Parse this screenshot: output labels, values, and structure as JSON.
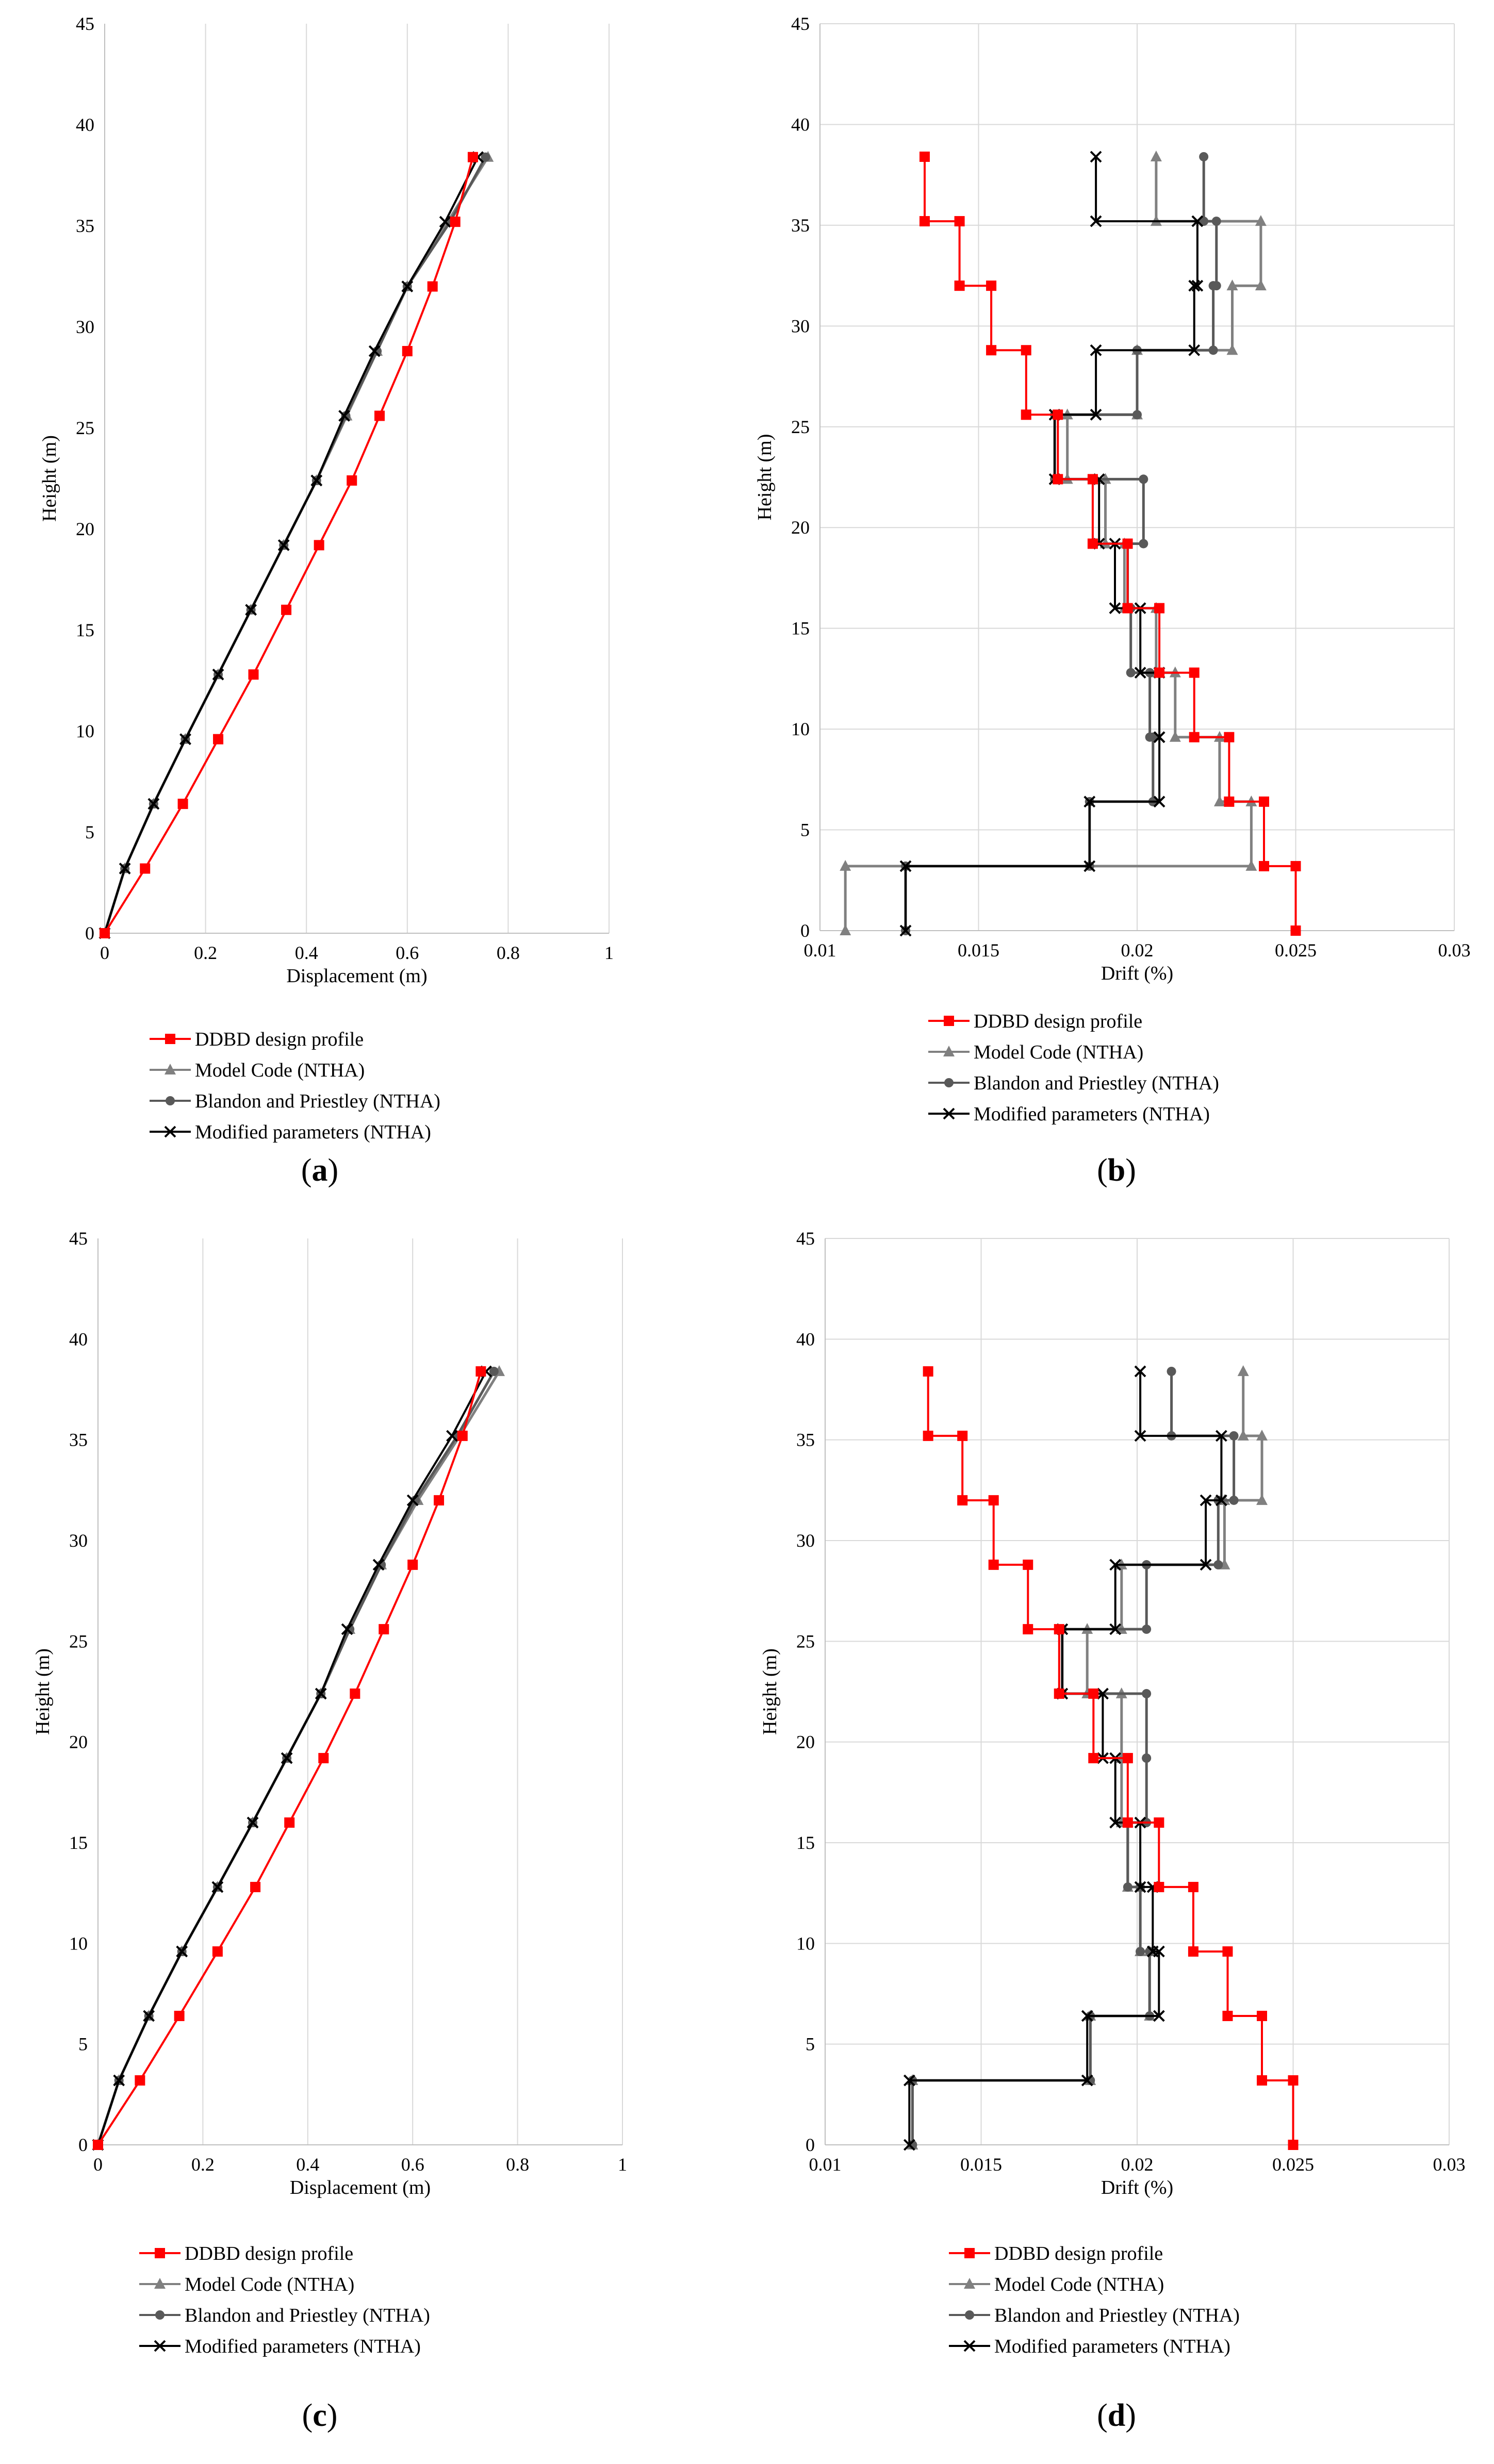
{
  "colors": {
    "ddbd": "#ff0000",
    "model_code": "#808080",
    "blandon": "#595959",
    "modified": "#000000",
    "grid": "#d9d9d9",
    "axis": "#bfbfbf"
  },
  "chart_data": [
    {
      "id": "a",
      "caption_letter": "a",
      "type": "line",
      "xlabel": "Displacement (m)",
      "ylabel": "Height (m)",
      "xlim": [
        0,
        1
      ],
      "ylim": [
        0,
        45
      ],
      "xticks": [
        0,
        0.2,
        0.4,
        0.6,
        0.8,
        1
      ],
      "xtick_labels": [
        "0",
        "0.2",
        "0.4",
        "0.6",
        "0.8",
        "1"
      ],
      "yticks": [
        0,
        5,
        10,
        15,
        20,
        25,
        30,
        35,
        40,
        45
      ],
      "ytick_labels": [
        "0",
        "5",
        "10",
        "15",
        "20",
        "25",
        "30",
        "35",
        "40",
        "45"
      ],
      "grid": "vertical",
      "series": [
        {
          "name": "DDBD design profile",
          "key": "ddbd",
          "marker": "square",
          "step": false,
          "x": [
            0,
            0.08,
            0.155,
            0.225,
            0.295,
            0.36,
            0.425,
            0.49,
            0.545,
            0.6,
            0.65,
            0.695,
            0.73
          ],
          "y": [
            0,
            3.2,
            6.4,
            9.6,
            12.8,
            16,
            19.2,
            22.4,
            25.6,
            28.8,
            32,
            35.2,
            38.4
          ]
        },
        {
          "name": "Model Code (NTHA)",
          "key": "model_code",
          "marker": "triangle",
          "step": false,
          "x": [
            0,
            0.04,
            0.097,
            0.16,
            0.225,
            0.29,
            0.355,
            0.42,
            0.48,
            0.54,
            0.6,
            0.68,
            0.76
          ],
          "y": [
            0,
            3.2,
            6.4,
            9.6,
            12.8,
            16,
            19.2,
            22.4,
            25.6,
            28.8,
            32,
            35.2,
            38.4
          ]
        },
        {
          "name": "Blandon and Priestley (NTHA)",
          "key": "blandon",
          "marker": "circle",
          "step": false,
          "x": [
            0,
            0.04,
            0.097,
            0.16,
            0.225,
            0.29,
            0.355,
            0.42,
            0.478,
            0.54,
            0.6,
            0.685,
            0.755
          ],
          "y": [
            0,
            3.2,
            6.4,
            9.6,
            12.8,
            16,
            19.2,
            22.4,
            25.6,
            28.8,
            32,
            35.2,
            38.4
          ]
        },
        {
          "name": "Modified parameters (NTHA)",
          "key": "modified",
          "marker": "x",
          "step": false,
          "x": [
            0,
            0.04,
            0.097,
            0.16,
            0.225,
            0.29,
            0.355,
            0.42,
            0.475,
            0.535,
            0.6,
            0.675,
            0.74
          ],
          "y": [
            0,
            3.2,
            6.4,
            9.6,
            12.8,
            16,
            19.2,
            22.4,
            25.6,
            28.8,
            32,
            35.2,
            38.4
          ]
        }
      ]
    },
    {
      "id": "b",
      "caption_letter": "b",
      "type": "line",
      "xlabel": "Drift (%)",
      "ylabel": "Height (m)",
      "xlim": [
        0.01,
        0.03
      ],
      "ylim": [
        0,
        45
      ],
      "xticks": [
        0.01,
        0.015,
        0.02,
        0.025,
        0.03
      ],
      "xtick_labels": [
        "0.01",
        "0.015",
        "0.02",
        "0.025",
        "0.03"
      ],
      "yticks": [
        0,
        5,
        10,
        15,
        20,
        25,
        30,
        35,
        40,
        45
      ],
      "ytick_labels": [
        "0",
        "5",
        "10",
        "15",
        "20",
        "25",
        "30",
        "35",
        "40",
        "45"
      ],
      "grid": "both",
      "series": [
        {
          "name": "DDBD design profile",
          "key": "ddbd",
          "marker": "square",
          "step": true,
          "drifts": [
            0.025,
            0.024,
            0.0229,
            0.0218,
            0.0207,
            0.0197,
            0.0186,
            0.0175,
            0.0165,
            0.0154,
            0.0144,
            0.0133
          ]
        },
        {
          "name": "Model Code (NTHA)",
          "key": "model_code",
          "marker": "triangle",
          "step": true,
          "drifts": [
            0.0108,
            0.0236,
            0.0226,
            0.0212,
            0.0206,
            0.0196,
            0.019,
            0.0178,
            0.02,
            0.023,
            0.0239,
            0.0206
          ]
        },
        {
          "name": "Blandon and Priestley (NTHA)",
          "key": "blandon",
          "marker": "circle",
          "step": true,
          "drifts": [
            0.0127,
            0.0185,
            0.0205,
            0.0204,
            0.0198,
            0.0197,
            0.0202,
            0.0174,
            0.02,
            0.0224,
            0.0225,
            0.0221
          ]
        },
        {
          "name": "Modified parameters (NTHA)",
          "key": "modified",
          "marker": "x",
          "step": true,
          "drifts": [
            0.0127,
            0.0185,
            0.0207,
            0.0207,
            0.0201,
            0.0193,
            0.0188,
            0.0174,
            0.0187,
            0.0218,
            0.0219,
            0.0187
          ]
        }
      ]
    },
    {
      "id": "c",
      "caption_letter": "c",
      "type": "line",
      "xlabel": "Displacement (m)",
      "ylabel": "Height (m)",
      "xlim": [
        0,
        1
      ],
      "ylim": [
        0,
        45
      ],
      "xticks": [
        0,
        0.2,
        0.4,
        0.6,
        0.8,
        1
      ],
      "xtick_labels": [
        "0",
        "0.2",
        "0.4",
        "0.6",
        "0.8",
        "1"
      ],
      "yticks": [
        0,
        5,
        10,
        15,
        20,
        25,
        30,
        35,
        40,
        45
      ],
      "ytick_labels": [
        "0",
        "5",
        "10",
        "15",
        "20",
        "25",
        "30",
        "35",
        "40",
        "45"
      ],
      "grid": "vertical",
      "series": [
        {
          "name": "DDBD design profile",
          "key": "ddbd",
          "marker": "square",
          "step": false,
          "x": [
            0,
            0.08,
            0.155,
            0.228,
            0.3,
            0.365,
            0.43,
            0.49,
            0.545,
            0.6,
            0.65,
            0.695,
            0.73
          ],
          "y": [
            0,
            3.2,
            6.4,
            9.6,
            12.8,
            16,
            19.2,
            22.4,
            25.6,
            28.8,
            32,
            35.2,
            38.4
          ]
        },
        {
          "name": "Model Code (NTHA)",
          "key": "model_code",
          "marker": "triangle",
          "step": false,
          "x": [
            0,
            0.04,
            0.097,
            0.16,
            0.228,
            0.295,
            0.36,
            0.425,
            0.48,
            0.54,
            0.61,
            0.69,
            0.765
          ],
          "y": [
            0,
            3.2,
            6.4,
            9.6,
            12.8,
            16,
            19.2,
            22.4,
            25.6,
            28.8,
            32,
            35.2,
            38.4
          ]
        },
        {
          "name": "Blandon and Priestley (NTHA)",
          "key": "blandon",
          "marker": "circle",
          "step": false,
          "x": [
            0,
            0.04,
            0.097,
            0.16,
            0.228,
            0.295,
            0.36,
            0.425,
            0.48,
            0.54,
            0.605,
            0.685,
            0.755
          ],
          "y": [
            0,
            3.2,
            6.4,
            9.6,
            12.8,
            16,
            19.2,
            22.4,
            25.6,
            28.8,
            32,
            35.2,
            38.4
          ]
        },
        {
          "name": "Modified parameters (NTHA)",
          "key": "modified",
          "marker": "x",
          "step": false,
          "x": [
            0,
            0.04,
            0.097,
            0.16,
            0.228,
            0.295,
            0.36,
            0.425,
            0.475,
            0.535,
            0.6,
            0.675,
            0.74
          ],
          "y": [
            0,
            3.2,
            6.4,
            9.6,
            12.8,
            16,
            19.2,
            22.4,
            25.6,
            28.8,
            32,
            35.2,
            38.4
          ]
        }
      ]
    },
    {
      "id": "d",
      "caption_letter": "d",
      "type": "line",
      "xlabel": "Drift (%)",
      "ylabel": "Height (m)",
      "xlim": [
        0.01,
        0.03
      ],
      "ylim": [
        0,
        45
      ],
      "xticks": [
        0.01,
        0.015,
        0.02,
        0.025,
        0.03
      ],
      "xtick_labels": [
        "0.01",
        "0.015",
        "0.02",
        "0.025",
        "0.03"
      ],
      "yticks": [
        0,
        5,
        10,
        15,
        20,
        25,
        30,
        35,
        40,
        45
      ],
      "ytick_labels": [
        "0",
        "5",
        "10",
        "15",
        "20",
        "25",
        "30",
        "35",
        "40",
        "45"
      ],
      "grid": "both",
      "series": [
        {
          "name": "DDBD design profile",
          "key": "ddbd",
          "marker": "square",
          "step": true,
          "drifts": [
            0.025,
            0.024,
            0.0229,
            0.0218,
            0.0207,
            0.0197,
            0.0186,
            0.0175,
            0.0165,
            0.0154,
            0.0144,
            0.0133
          ]
        },
        {
          "name": "Model Code (NTHA)",
          "key": "model_code",
          "marker": "triangle",
          "step": true,
          "drifts": [
            0.0128,
            0.0185,
            0.0204,
            0.0201,
            0.0197,
            0.0195,
            0.0195,
            0.0184,
            0.0195,
            0.0228,
            0.024,
            0.0234
          ]
        },
        {
          "name": "Blandon and Priestley (NTHA)",
          "key": "blandon",
          "marker": "circle",
          "step": true,
          "drifts": [
            0.0128,
            0.0185,
            0.0204,
            0.0201,
            0.0197,
            0.0203,
            0.0203,
            0.0176,
            0.0203,
            0.0226,
            0.0231,
            0.0211
          ]
        },
        {
          "name": "Modified parameters (NTHA)",
          "key": "modified",
          "marker": "x",
          "step": true,
          "drifts": [
            0.0127,
            0.0184,
            0.0207,
            0.0205,
            0.0201,
            0.0193,
            0.0189,
            0.0176,
            0.0193,
            0.0222,
            0.0227,
            0.0201
          ]
        }
      ]
    }
  ]
}
